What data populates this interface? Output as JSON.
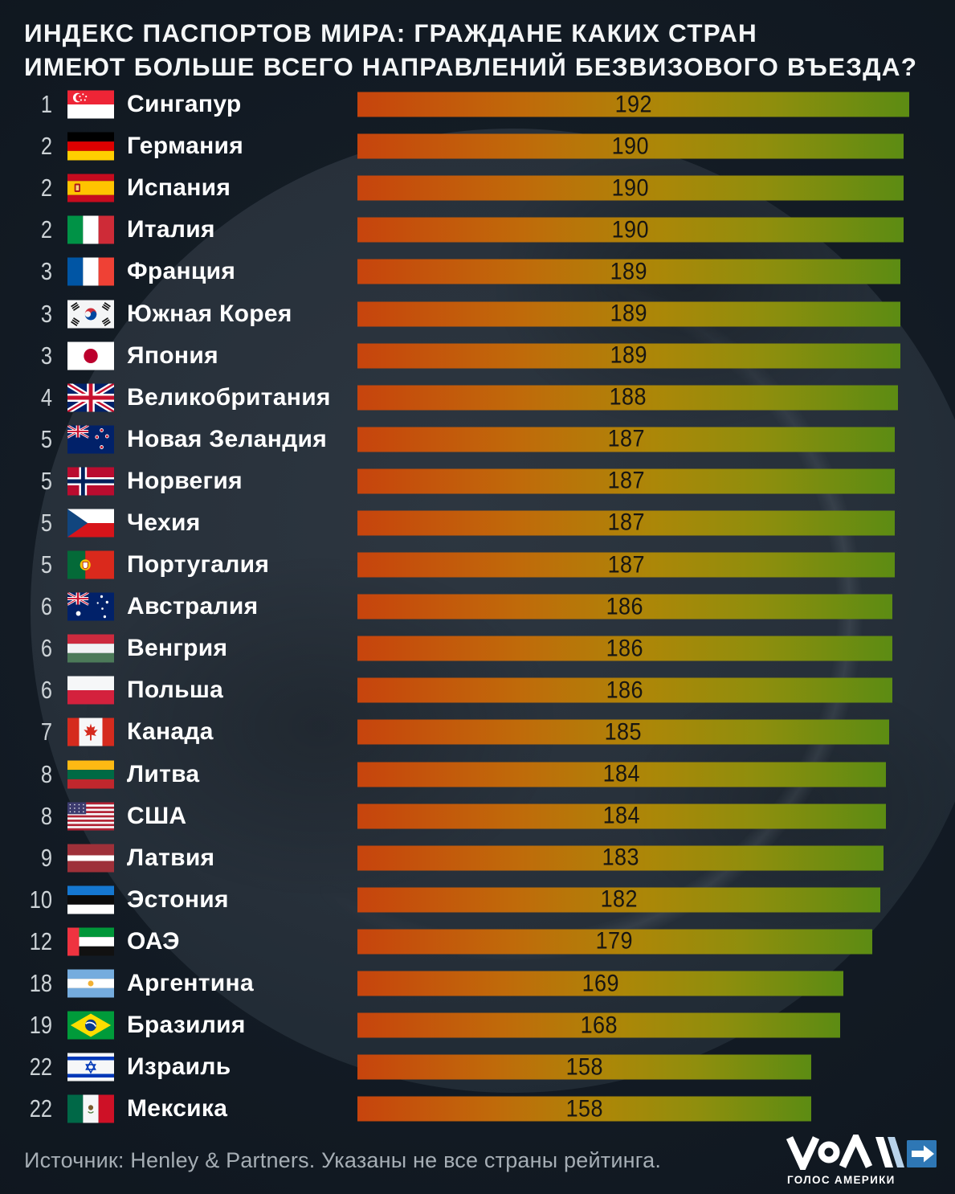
{
  "title": {
    "line1": "ИНДЕКС ПАСПОРТОВ МИРА: ГРАЖДАНЕ КАКИХ СТРАН",
    "line2": "ИМЕЮТ БОЛЬШЕ ВСЕГО НАПРАВЛЕНИЙ БЕЗВИЗОВОГО ВЪЕЗДА?"
  },
  "rows": [
    {
      "rank": "1",
      "flag": "sg",
      "country": "Сингапур",
      "value": 192
    },
    {
      "rank": "2",
      "flag": "de",
      "country": "Германия",
      "value": 190
    },
    {
      "rank": "2",
      "flag": "es",
      "country": "Испания",
      "value": 190
    },
    {
      "rank": "2",
      "flag": "it",
      "country": "Италия",
      "value": 190
    },
    {
      "rank": "3",
      "flag": "fr",
      "country": "Франция",
      "value": 189
    },
    {
      "rank": "3",
      "flag": "kr",
      "country": "Южная Корея",
      "value": 189
    },
    {
      "rank": "3",
      "flag": "jp",
      "country": "Япония",
      "value": 189
    },
    {
      "rank": "4",
      "flag": "gb",
      "country": "Великобритания",
      "value": 188
    },
    {
      "rank": "5",
      "flag": "nz",
      "country": "Новая Зеландия",
      "value": 187
    },
    {
      "rank": "5",
      "flag": "no",
      "country": "Норвегия",
      "value": 187
    },
    {
      "rank": "5",
      "flag": "cz",
      "country": "Чехия",
      "value": 187
    },
    {
      "rank": "5",
      "flag": "pt",
      "country": "Португалия",
      "value": 187
    },
    {
      "rank": "6",
      "flag": "au",
      "country": "Австралия",
      "value": 186
    },
    {
      "rank": "6",
      "flag": "hu",
      "country": "Венгрия",
      "value": 186
    },
    {
      "rank": "6",
      "flag": "pl",
      "country": "Польша",
      "value": 186
    },
    {
      "rank": "7",
      "flag": "ca",
      "country": "Канада",
      "value": 185
    },
    {
      "rank": "8",
      "flag": "lt",
      "country": "Литва",
      "value": 184
    },
    {
      "rank": "8",
      "flag": "us",
      "country": "США",
      "value": 184
    },
    {
      "rank": "9",
      "flag": "lv",
      "country": "Латвия",
      "value": 183
    },
    {
      "rank": "10",
      "flag": "ee",
      "country": "Эстония",
      "value": 182
    },
    {
      "rank": "12",
      "flag": "ae",
      "country": "ОАЭ",
      "value": 179
    },
    {
      "rank": "18",
      "flag": "ar",
      "country": "Аргентина",
      "value": 169
    },
    {
      "rank": "19",
      "flag": "br",
      "country": "Бразилия",
      "value": 168
    },
    {
      "rank": "22",
      "flag": "il",
      "country": "Израиль",
      "value": 158
    },
    {
      "rank": "22",
      "flag": "mx",
      "country": "Мексика",
      "value": 158
    }
  ],
  "chart_data": {
    "type": "bar",
    "orientation": "horizontal",
    "title": "ИНДЕКС ПАСПОРТОВ МИРА: ГРАЖДАНЕ КАКИХ СТРАН ИМЕЮТ БОЛЬШЕ ВСЕГО НАПРАВЛЕНИЙ БЕЗВИЗОВОГО ВЪЕЗДА?",
    "categories": [
      "Сингапур",
      "Германия",
      "Испания",
      "Италия",
      "Франция",
      "Южная Корея",
      "Япония",
      "Великобритания",
      "Новая Зеландия",
      "Норвегия",
      "Чехия",
      "Португалия",
      "Австралия",
      "Венгрия",
      "Польша",
      "Канада",
      "Литва",
      "США",
      "Латвия",
      "Эстония",
      "ОАЭ",
      "Аргентина",
      "Бразилия",
      "Израиль",
      "Мексика"
    ],
    "ranks": [
      1,
      2,
      2,
      2,
      3,
      3,
      3,
      4,
      5,
      5,
      5,
      5,
      6,
      6,
      6,
      7,
      8,
      8,
      9,
      10,
      12,
      18,
      19,
      22,
      22
    ],
    "values": [
      192,
      190,
      190,
      190,
      189,
      189,
      189,
      188,
      187,
      187,
      187,
      187,
      186,
      186,
      186,
      185,
      184,
      184,
      183,
      182,
      179,
      169,
      168,
      158,
      158
    ],
    "xlim": [
      0,
      192
    ],
    "value_labels_shown": true,
    "grid": false,
    "legend": false,
    "bar_gradient": [
      "#c7440d",
      "#ac8708",
      "#5c8c13"
    ]
  },
  "footer": {
    "source": "Источник: Henley & Partners. Указаны не все страны рейтинга."
  },
  "logo": {
    "caption": "ГОЛОС АМЕРИКИ",
    "blue": "#2e77b5",
    "light_blue": "#b9d3ea"
  },
  "colors": {
    "background": "#121a23",
    "title_text": "#f4f6f7",
    "rank_text": "#ccd2d6",
    "country_text": "#ffffff",
    "value_text": "#171512",
    "footer_text": "#a6aeb5"
  }
}
